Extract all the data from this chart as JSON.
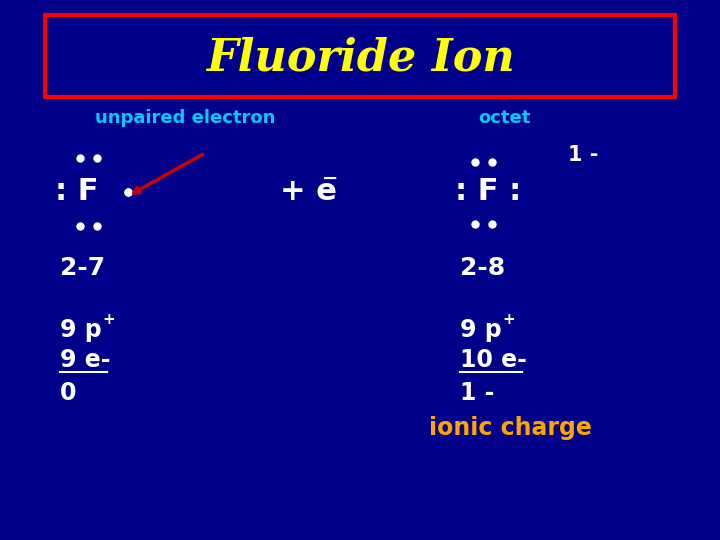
{
  "bg_color": "#00008B",
  "title": "Fluoride Ion",
  "title_color": "#FFFF00",
  "title_box_color": "#FF0000",
  "subtitle_left": "unpaired electron",
  "subtitle_right": "octet",
  "subtitle_color": "#00CCFF",
  "white_color": "#FFFFFF",
  "yellow_color": "#FFFF00",
  "orange_color": "#FFA500",
  "red_color": "#CC0000",
  "figsize": [
    7.2,
    5.4
  ],
  "dpi": 100
}
